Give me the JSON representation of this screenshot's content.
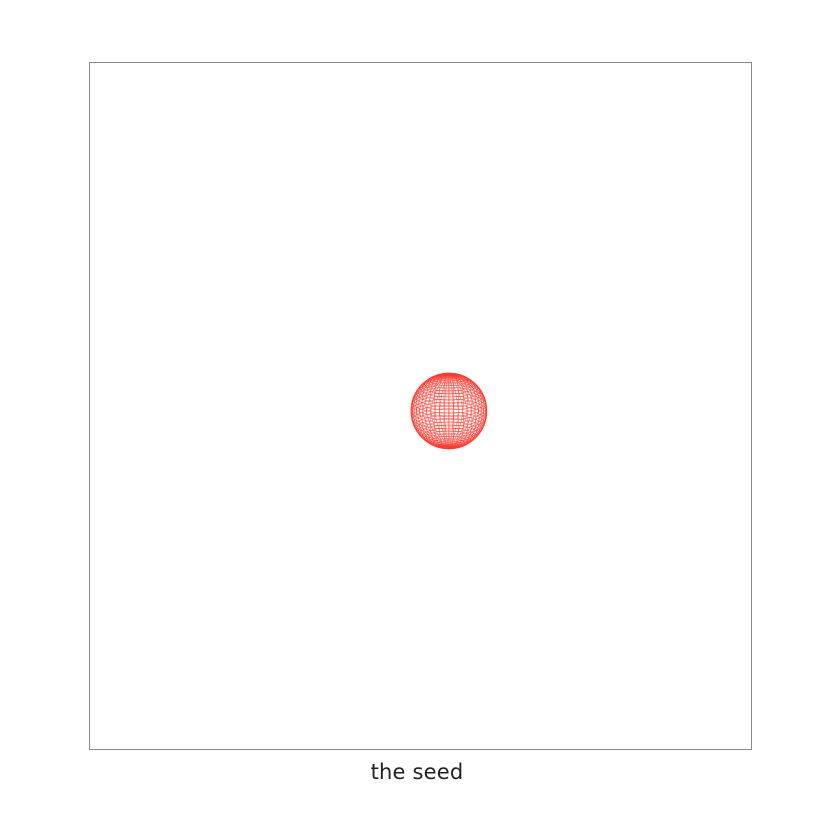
{
  "caption": "the seed",
  "colors": {
    "frame_border": "#8a8a8a",
    "sphere_mesh": "#ff3b2f",
    "background": "#ffffff"
  },
  "figure": {
    "object": "wireframe-sphere",
    "meridians": 48,
    "parallels": 36
  }
}
